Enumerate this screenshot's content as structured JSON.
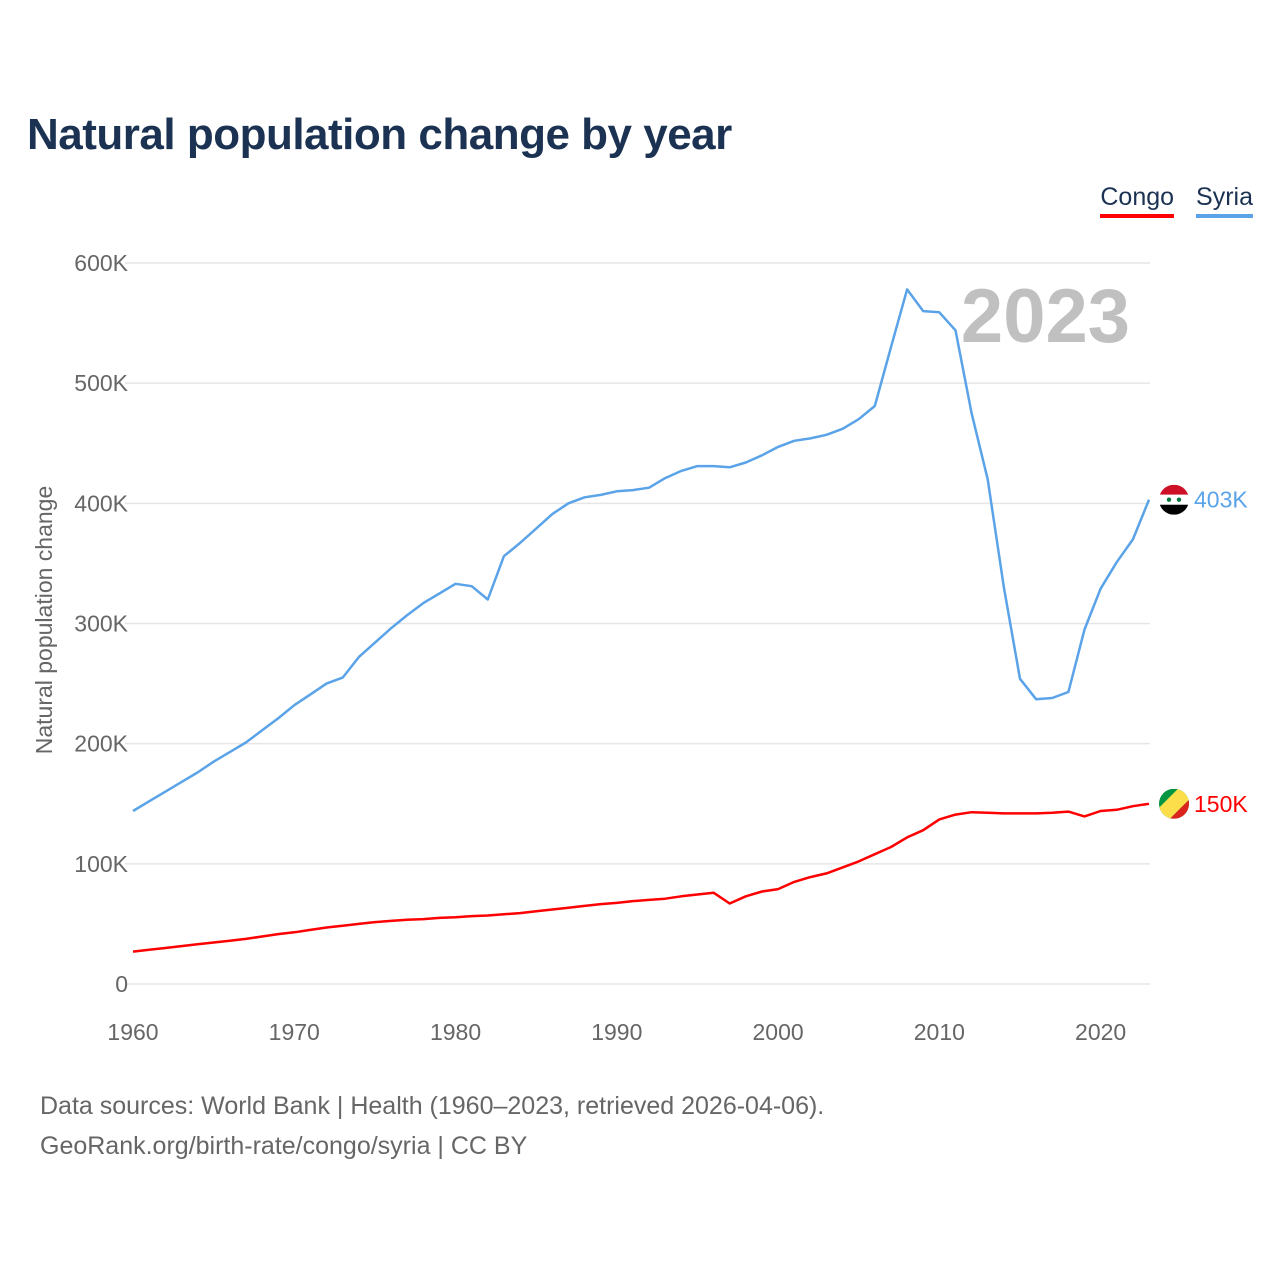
{
  "chart_data": {
    "type": "line",
    "title": "Natural population change by year",
    "xlabel": "",
    "ylabel": "Natural population change",
    "xlim": [
      1960,
      2023
    ],
    "ylim": [
      0,
      600000
    ],
    "grid": true,
    "legend_placement": "top-right",
    "y_ticks": [
      "0",
      "100K",
      "200K",
      "300K",
      "400K",
      "500K",
      "600K"
    ],
    "x_ticks": [
      "1960",
      "1970",
      "1980",
      "1990",
      "2000",
      "2010",
      "2020"
    ],
    "year_label": "2023",
    "x": [
      1960,
      1961,
      1962,
      1963,
      1964,
      1965,
      1966,
      1967,
      1968,
      1969,
      1970,
      1971,
      1972,
      1973,
      1974,
      1975,
      1976,
      1977,
      1978,
      1979,
      1980,
      1981,
      1982,
      1983,
      1984,
      1985,
      1986,
      1987,
      1988,
      1989,
      1990,
      1991,
      1992,
      1993,
      1994,
      1995,
      1996,
      1997,
      1998,
      1999,
      2000,
      2001,
      2002,
      2003,
      2004,
      2005,
      2006,
      2007,
      2008,
      2009,
      2010,
      2011,
      2012,
      2013,
      2014,
      2015,
      2016,
      2017,
      2018,
      2019,
      2020,
      2021,
      2022,
      2023
    ],
    "series": [
      {
        "name": "Congo",
        "color": "#ff0000",
        "end_label": "150K",
        "flag": "congo-flag-icon",
        "values": [
          27000,
          28500,
          30000,
          31500,
          33000,
          34500,
          36000,
          37500,
          39500,
          41500,
          43000,
          45000,
          47000,
          48500,
          50000,
          51500,
          52500,
          53500,
          54000,
          55000,
          55500,
          56500,
          57000,
          58000,
          59000,
          60500,
          62000,
          63500,
          65000,
          66500,
          67500,
          69000,
          70000,
          71000,
          73000,
          74500,
          76000,
          67000,
          73000,
          77000,
          79000,
          85000,
          89000,
          92000,
          97000,
          102000,
          108000,
          114000,
          122000,
          128000,
          137000,
          141000,
          143000,
          142500,
          142000,
          142000,
          142000,
          142500,
          143500,
          139500,
          144000,
          145000,
          148000,
          150000
        ]
      },
      {
        "name": "Syria",
        "color": "#5aa3e8",
        "end_label": "403K",
        "flag": "syria-flag-icon",
        "values": [
          144000,
          152000,
          160000,
          168000,
          176000,
          185000,
          193000,
          201000,
          211000,
          221000,
          232000,
          241000,
          250000,
          255000,
          272000,
          284000,
          296000,
          307000,
          317000,
          325000,
          333000,
          331000,
          320000,
          356000,
          367000,
          379000,
          391000,
          400000,
          405000,
          407000,
          410000,
          411000,
          413000,
          421000,
          427000,
          431000,
          431000,
          430000,
          434000,
          440000,
          447000,
          452000,
          454000,
          457000,
          462000,
          470000,
          481000,
          530000,
          578000,
          560000,
          559000,
          544000,
          475000,
          420000,
          330000,
          254000,
          237000,
          238000,
          243000,
          295000,
          329000,
          351000,
          370000,
          403000
        ]
      }
    ]
  },
  "footer": {
    "line1": "Data sources: World Bank | Health (1960–2023, retrieved 2026-04-06).",
    "line2": "GeoRank.org/birth-rate/congo/syria | CC BY"
  }
}
